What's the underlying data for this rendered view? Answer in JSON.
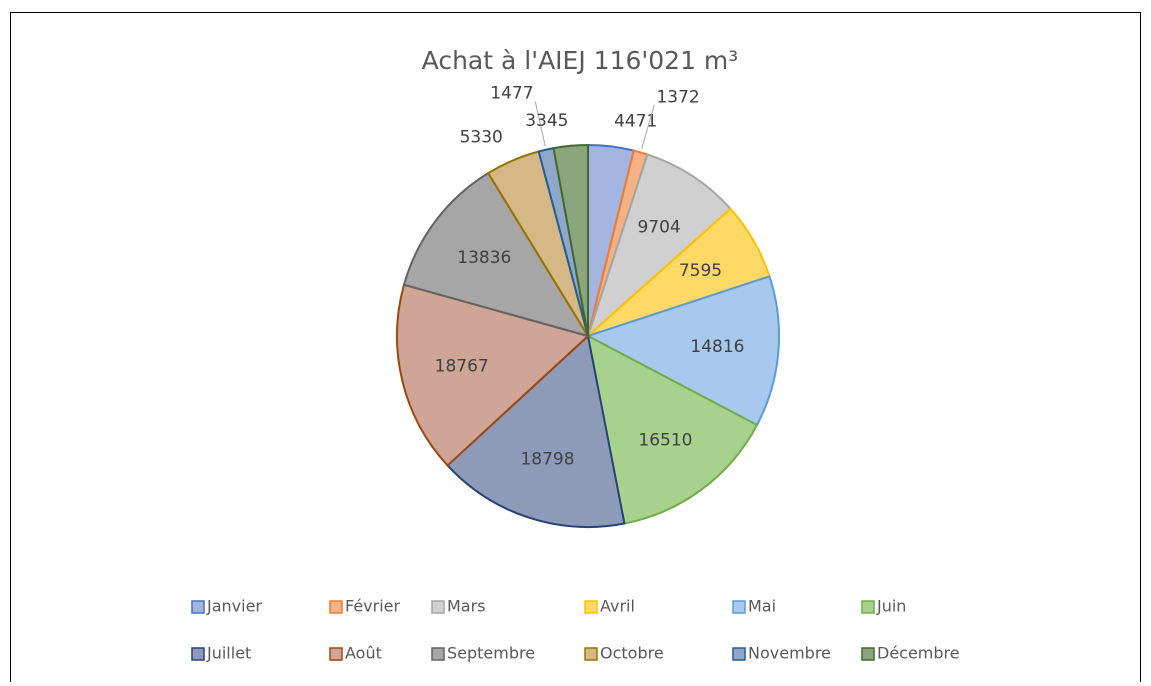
{
  "chart_data": {
    "type": "pie",
    "title": "Achat à l'AIEJ 116'021 m³",
    "categories": [
      "Janvier",
      "Février",
      "Mars",
      "Avril",
      "Mai",
      "Juin",
      "Juillet",
      "Août",
      "Septembre",
      "Octobre",
      "Novembre",
      "Décembre"
    ],
    "values": [
      4471,
      1372,
      9704,
      7595,
      14816,
      16510,
      18798,
      18767,
      13836,
      5330,
      1477,
      3345
    ],
    "colors": [
      "#a4b4e0",
      "#f4b183",
      "#d0d0d0",
      "#ffd966",
      "#a9c8ee",
      "#a9d18e",
      "#8e9bb8",
      "#cfa597",
      "#a6a6a6",
      "#d6b887",
      "#8fa7c9",
      "#8da57f"
    ],
    "edge_colors": [
      "#4472c4",
      "#ed7d31",
      "#a5a5a5",
      "#ffc000",
      "#5b9bd5",
      "#70ad47",
      "#264478",
      "#9e480e",
      "#636363",
      "#997300",
      "#255e91",
      "#43682b"
    ],
    "legend": "bottom"
  }
}
